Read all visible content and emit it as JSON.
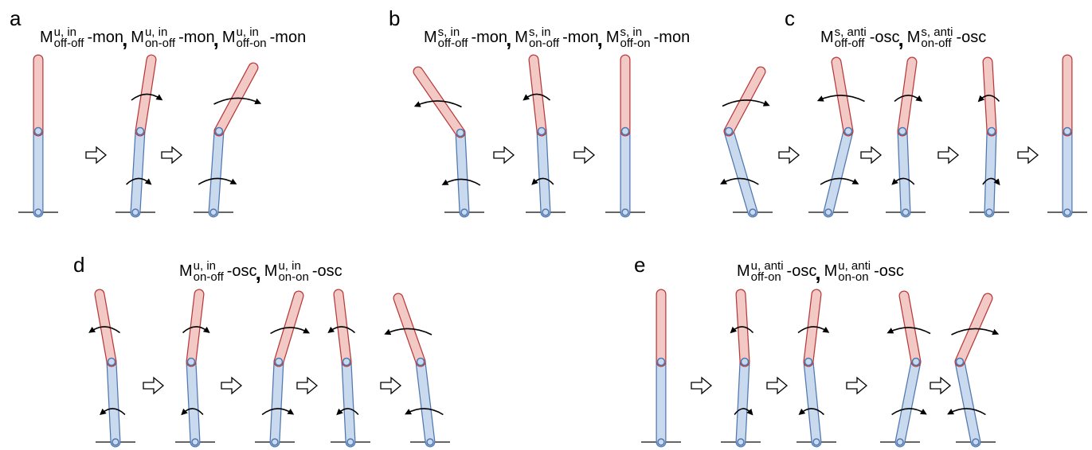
{
  "panels": [
    {
      "label": "a",
      "separator": ",",
      "terms": [
        {
          "base": "M",
          "sup": "u, in",
          "sub": "off-off",
          "suffix": "-mon"
        },
        {
          "base": "M",
          "sup": "u, in",
          "sub": "on-off",
          "suffix": "-mon"
        },
        {
          "base": "M",
          "sup": "u, in",
          "sub": "off-on",
          "suffix": "-mon"
        }
      ]
    },
    {
      "label": "b",
      "separator": ",",
      "terms": [
        {
          "base": "M",
          "sup": "s, in",
          "sub": "off-off",
          "suffix": "-mon"
        },
        {
          "base": "M",
          "sup": "s, in",
          "sub": "on-off",
          "suffix": "-mon"
        },
        {
          "base": "M",
          "sup": "s, in",
          "sub": "off-on",
          "suffix": "-mon"
        }
      ]
    },
    {
      "label": "c",
      "separator": ",",
      "terms": [
        {
          "base": "M",
          "sup": "s, anti",
          "sub": "off-off",
          "suffix": "-osc"
        },
        {
          "base": "M",
          "sup": "s, anti",
          "sub": "on-off",
          "suffix": "-osc"
        }
      ]
    },
    {
      "label": "d",
      "separator": ",",
      "terms": [
        {
          "base": "M",
          "sup": "u, in",
          "sub": "on-off",
          "suffix": "-osc"
        },
        {
          "base": "M",
          "sup": "u, in",
          "sub": "on-on",
          "suffix": "-osc"
        }
      ]
    },
    {
      "label": "e",
      "separator": ",",
      "terms": [
        {
          "base": "M",
          "sup": "u, anti",
          "sub": "off-on",
          "suffix": "-osc"
        },
        {
          "base": "M",
          "sup": "u, anti",
          "sub": "on-on",
          "suffix": "-osc"
        }
      ]
    }
  ]
}
